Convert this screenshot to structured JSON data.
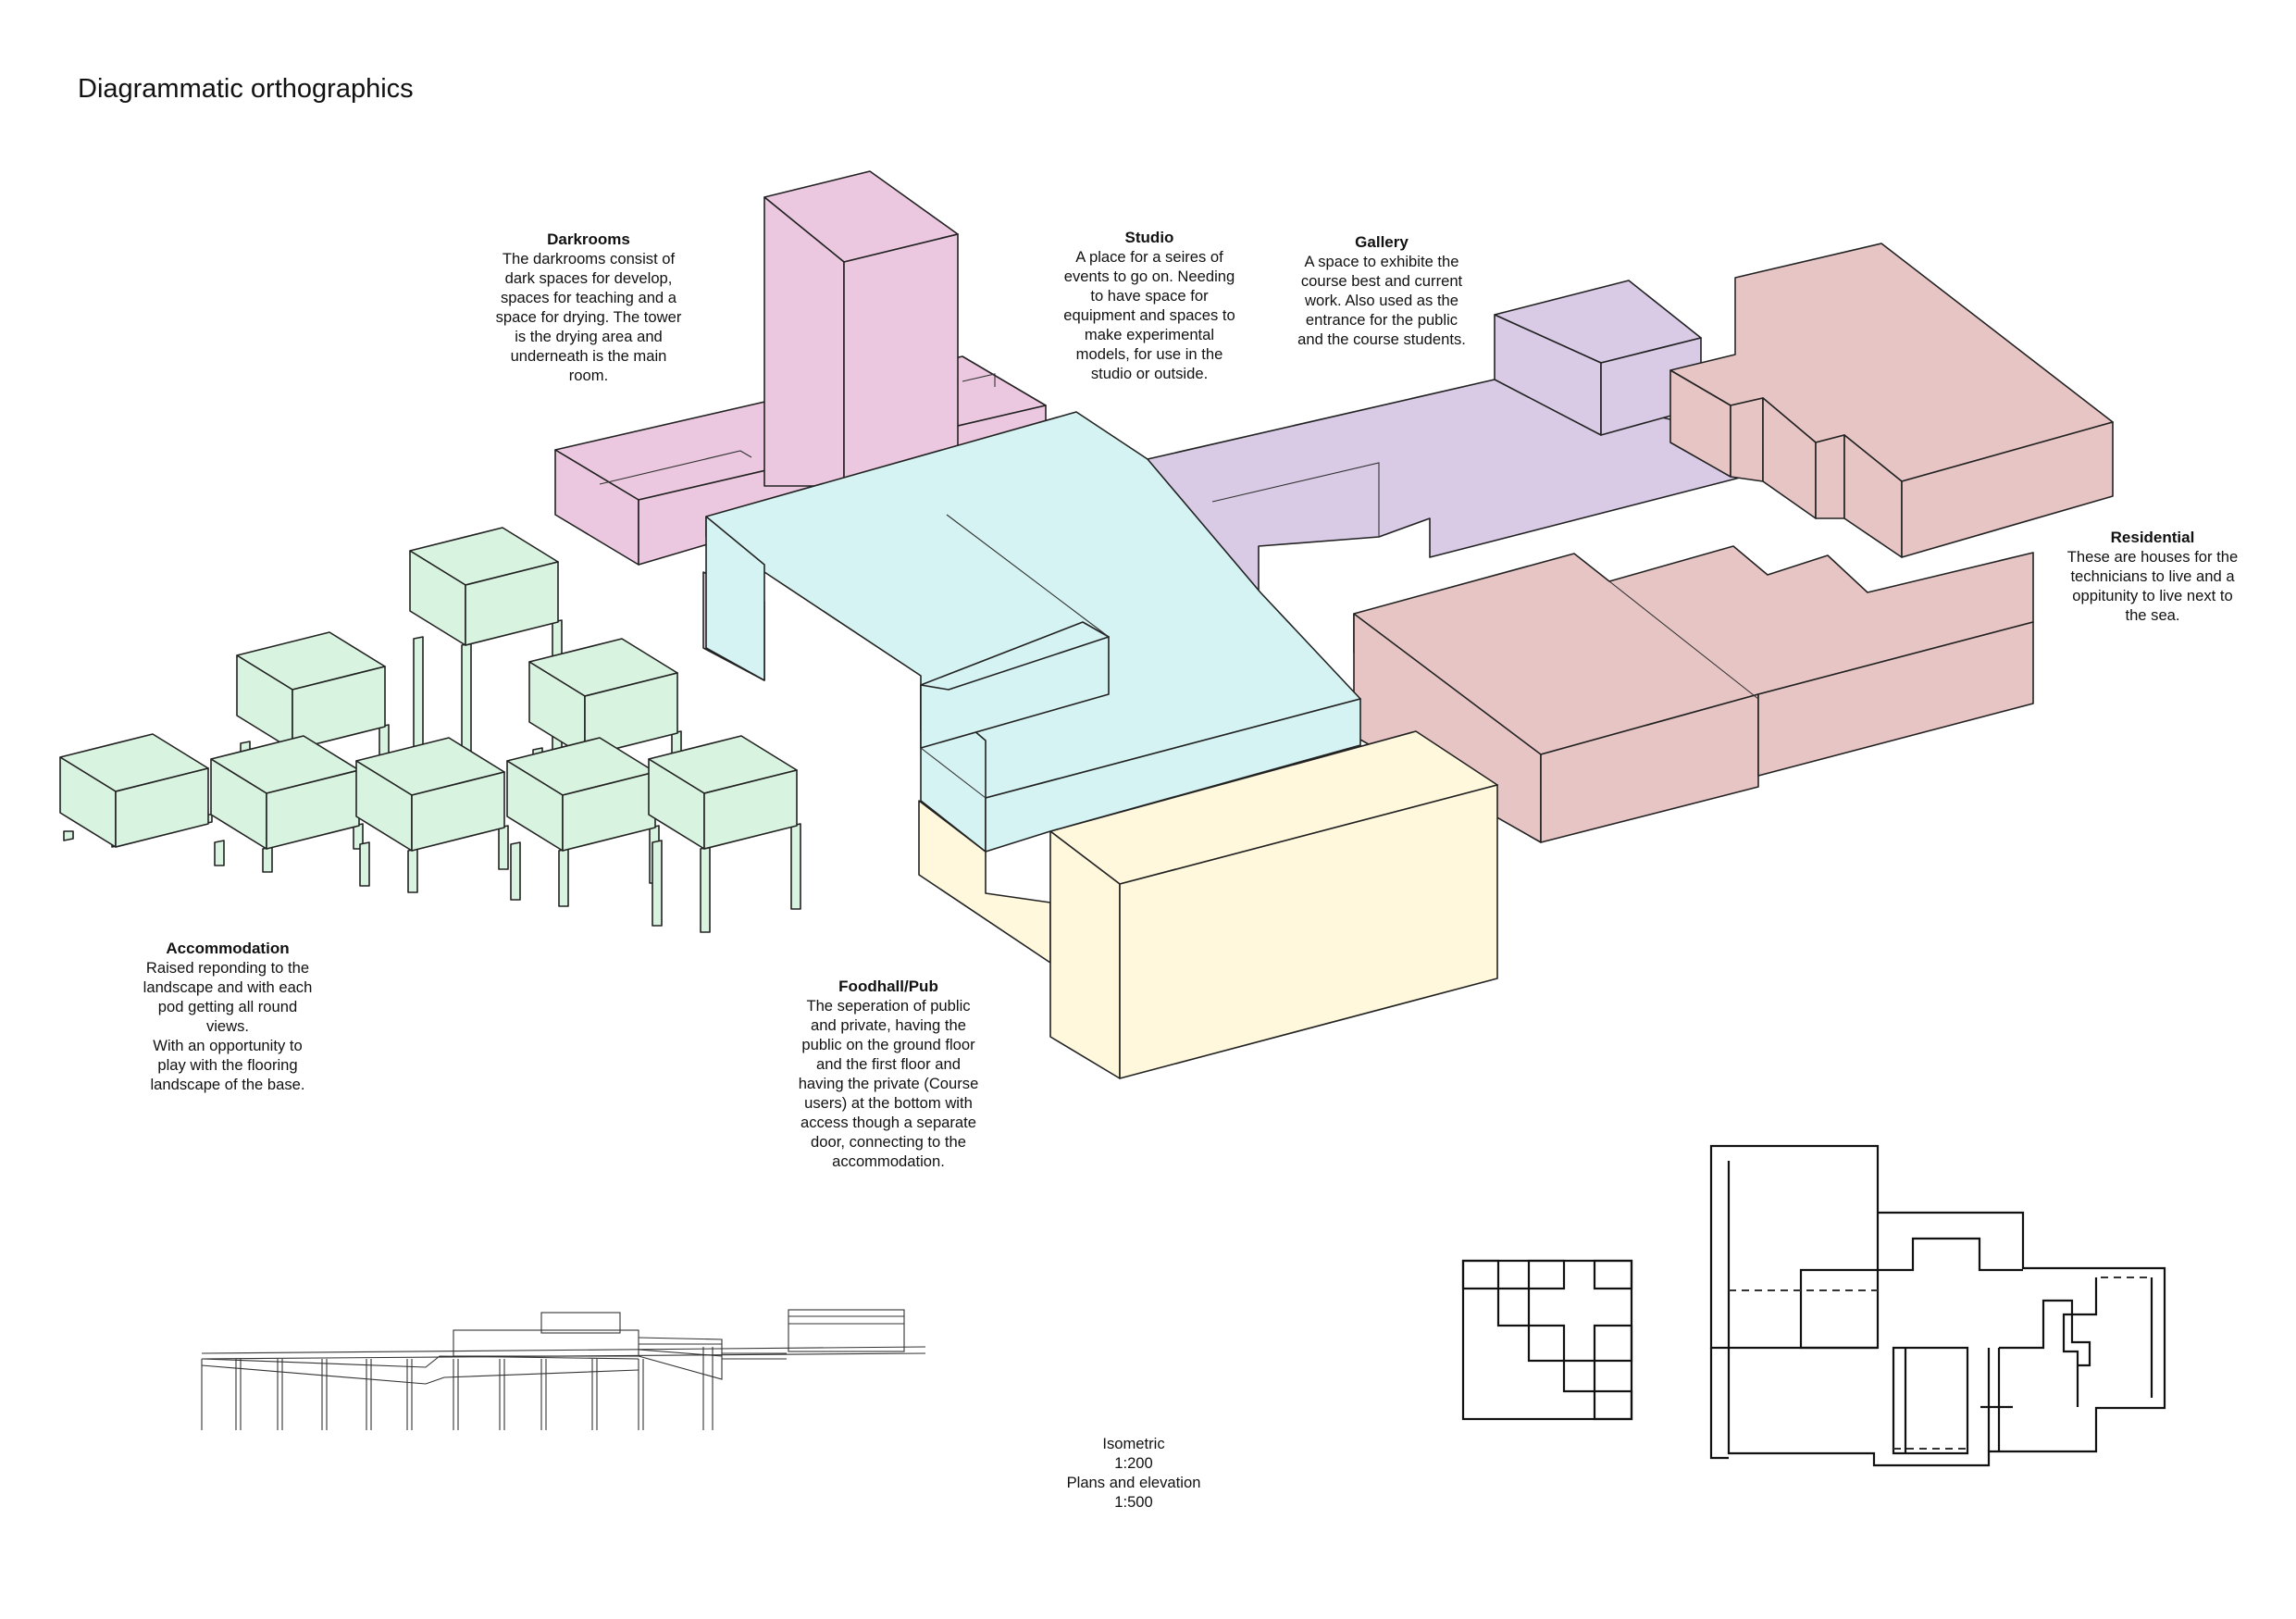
{
  "page": {
    "title": "Diagrammatic orthographics"
  },
  "colors": {
    "darkrooms": "#ebc8df",
    "studio": "#d4f3f2",
    "gallery": "#d9cbe6",
    "residential": "#e7c5c5",
    "foodhall": "#fff8dc",
    "accommodation": "#d8f3df",
    "line": "#222222"
  },
  "annotations": {
    "darkrooms": {
      "title": "Darkrooms",
      "body": "The darkrooms consist of\ndark spaces for develop,\nspaces for teaching and a\nspace for drying. The tower\nis the drying area and\nunderneath is the main\nroom."
    },
    "studio": {
      "title": "Studio",
      "body": "A place for a seires of\nevents to go on. Needing\nto have space for\nequipment and spaces to\nmake experimental\nmodels, for use in the\nstudio or outside."
    },
    "gallery": {
      "title": "Gallery",
      "body": "A space to exhibite the\ncourse best and current\nwork. Also used as the\nentrance for the public\nand the course students."
    },
    "residential": {
      "title": "Residential",
      "body": "These are houses for the\ntechnicians to live and a\noppitunity to live next to\nthe sea."
    },
    "accommodation": {
      "title": "Accommodation",
      "body": "Raised reponding to the\nlandscape and with each\npod getting all round\nviews.\nWith an opportunity to\nplay with the flooring\nlandscape of the base."
    },
    "foodhall": {
      "title": "Foodhall/Pub",
      "body": "The seperation of public\nand private, having the\npublic on the ground floor\nand the first floor and\nhaving the private (Course\nusers) at the bottom with\naccess though a separate\ndoor, connecting to the\naccommodation."
    }
  },
  "scale_note": "Isometric\n1:200\nPlans and elevation\n1:500"
}
